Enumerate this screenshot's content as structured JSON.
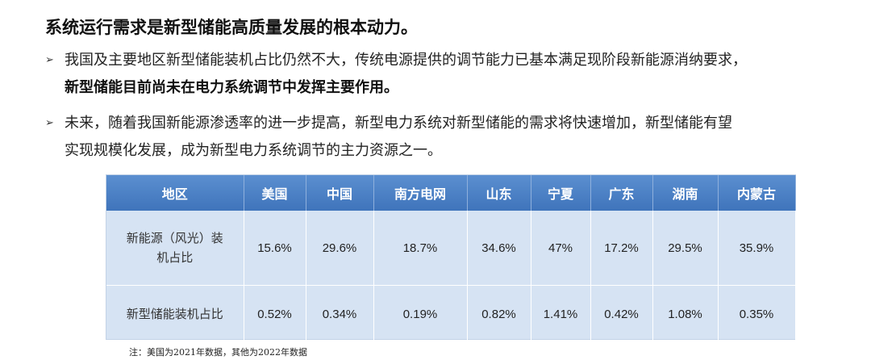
{
  "heading": "系统运行需求是新型储能高质量发展的根本动力。",
  "bullets": [
    {
      "line1": "我国及主要地区新型储能装机占比仍然不大，传统电源提供的调节能力已基本满足现阶段新能源消纳要求，",
      "line2": "新型储能目前尚未在电力系统调节中发挥主要作用。"
    },
    {
      "line1": "未来，随着我国新能源渗透率的进一步提高，新型电力系统对新型储能的需求将快速增加，新型储能有望",
      "line2": "实现规模化发展，成为新型电力系统调节的主力资源之一。"
    }
  ],
  "arrow_glyph": "➢",
  "table": {
    "headers": [
      "地区",
      "美国",
      "中国",
      "南方电网",
      "山东",
      "宁夏",
      "广东",
      "湖南",
      "内蒙古"
    ],
    "rows": [
      {
        "label_line1": "新能源（风光）装",
        "label_line2": "机占比",
        "values": [
          "15.6%",
          "29.6%",
          "18.7%",
          "34.6%",
          "47%",
          "17.2%",
          "29.5%",
          "35.9%"
        ]
      },
      {
        "label_line1": "新型储能装机占比",
        "label_line2": "",
        "values": [
          "0.52%",
          "0.34%",
          "0.19%",
          "0.82%",
          "1.41%",
          "0.42%",
          "1.08%",
          "0.35%"
        ]
      }
    ]
  },
  "note": "注：美国为2021年数据，其他为2022年数据",
  "colors": {
    "header_bg": "#4a80c4",
    "body_bg": "#d6e3f3"
  }
}
